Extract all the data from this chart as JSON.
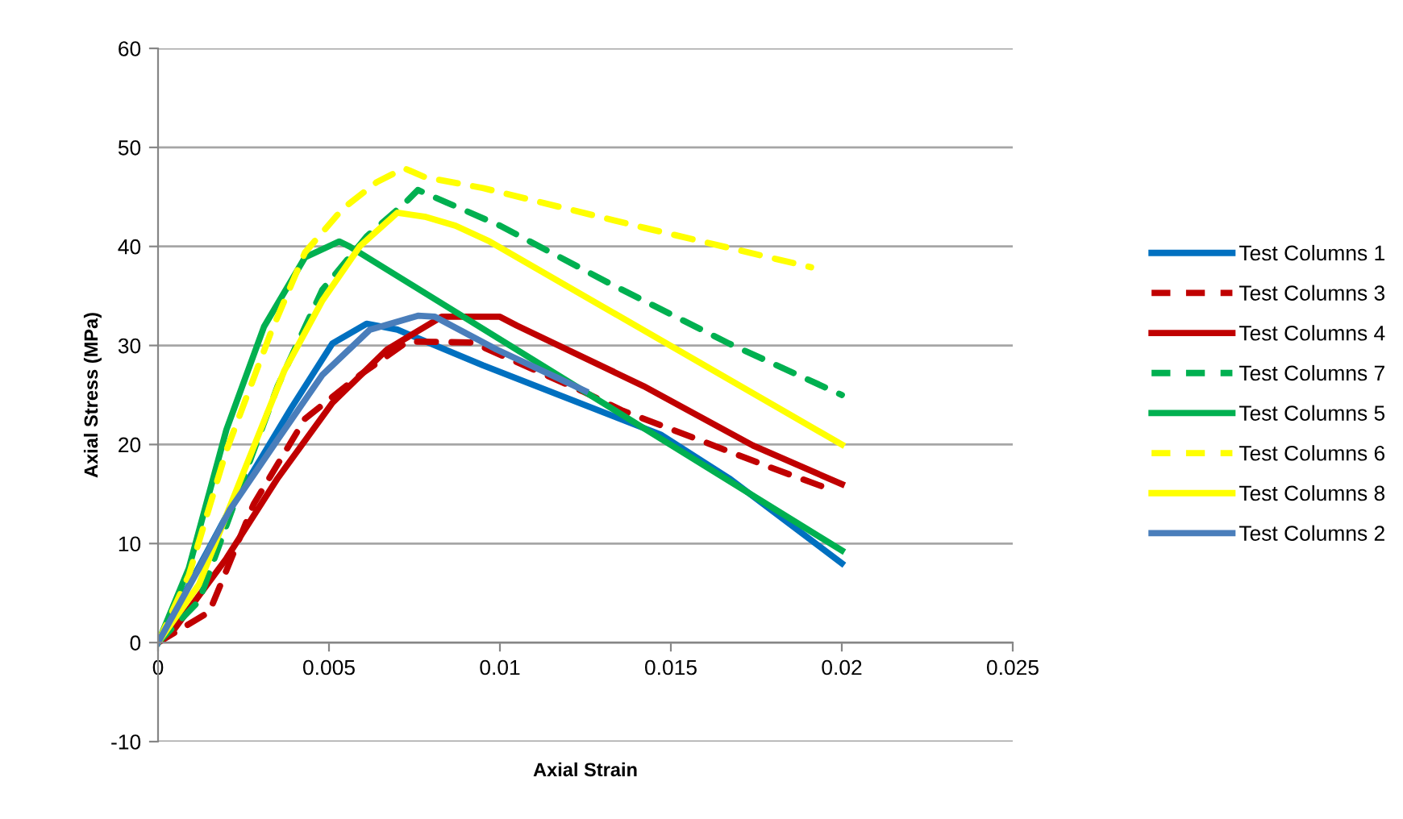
{
  "chart_data": {
    "type": "line",
    "xlabel": "Axial Strain",
    "ylabel": "Axial Stress (MPa)",
    "xlim": [
      0,
      0.025
    ],
    "xticks": [
      0,
      0.005,
      0.01,
      0.015,
      0.02,
      0.025
    ],
    "ylim": [
      -10,
      60
    ],
    "yticks": [
      -10,
      0,
      10,
      20,
      30,
      40,
      50,
      60
    ],
    "grid": "y",
    "legend": "right",
    "marker": "none",
    "series": [
      {
        "name": "Test Columns 1",
        "color": "#0070c0",
        "line_style": "solid",
        "x": [
          0,
          0.002,
          0.0039,
          0.0051,
          0.0061,
          0.007,
          0.0095,
          0.0147,
          0.0167,
          0.02
        ],
        "values": [
          0,
          12.8,
          23.7,
          30.2,
          32.2,
          31.6,
          28,
          21,
          16.6,
          8
        ]
      },
      {
        "name": "Test Columns 3",
        "color": "#c00000",
        "line_style": "dashed",
        "x": [
          0,
          0.0015,
          0.0028,
          0.0043,
          0.0059,
          0.0073,
          0.0092,
          0.0124,
          0.0136,
          0.0158,
          0.0179,
          0.0194
        ],
        "values": [
          0,
          3.1,
          14,
          22.6,
          27,
          30.4,
          30.3,
          25.4,
          23.4,
          20.5,
          17.7,
          15.8
        ]
      },
      {
        "name": "Test Columns 4",
        "color": "#c00000",
        "line_style": "solid",
        "x": [
          0,
          0.0004,
          0.002,
          0.0035,
          0.0051,
          0.0067,
          0.0083,
          0.01,
          0.0105,
          0.0142,
          0.0174,
          0.02
        ],
        "values": [
          0,
          1,
          8.5,
          16.6,
          24.2,
          29.6,
          32.9,
          32.9,
          32,
          25.9,
          19.9,
          16
        ]
      },
      {
        "name": "Test Columns 7",
        "color": "#00b050",
        "line_style": "dashed",
        "x": [
          0,
          0.0012,
          0.0025,
          0.0035,
          0.0048,
          0.0061,
          0.0072,
          0.0076,
          0.01,
          0.0133,
          0.0167,
          0.02
        ],
        "values": [
          0,
          4.2,
          16.6,
          25.9,
          35.6,
          41,
          44.3,
          45.7,
          42.1,
          36.1,
          30.2,
          25
        ]
      },
      {
        "name": "Test Columns 5",
        "color": "#00b050",
        "line_style": "solid",
        "x": [
          0,
          0.0009,
          0.002,
          0.0031,
          0.0043,
          0.0053,
          0.0056,
          0.02
        ],
        "values": [
          0,
          7.5,
          21.5,
          31.9,
          38.9,
          40.5,
          40,
          9.3
        ]
      },
      {
        "name": "Test Columns 6",
        "color": "#ffff00",
        "line_style": "dashed",
        "x": [
          0,
          0.0009,
          0.002,
          0.0033,
          0.0043,
          0.0054,
          0.0064,
          0.0072,
          0.0078,
          0.0095,
          0.0142,
          0.0191
        ],
        "values": [
          0,
          6.8,
          19.4,
          31.3,
          39.4,
          43.8,
          46.5,
          47.9,
          47,
          45.9,
          41.9,
          37.9
        ]
      },
      {
        "name": "Test Columns 8",
        "color": "#ffff00",
        "line_style": "solid",
        "x": [
          0,
          0.0012,
          0.0025,
          0.0037,
          0.0048,
          0.0059,
          0.007,
          0.0078,
          0.0087,
          0.0097,
          0.02
        ],
        "values": [
          0,
          5.9,
          17.2,
          27.5,
          34.5,
          40,
          43.4,
          43,
          42.1,
          40.5,
          20
        ]
      },
      {
        "name": "Test Columns 2",
        "color": "#4a7ebb",
        "line_style": "solid",
        "x": [
          0,
          0.0012,
          0.0021,
          0.0035,
          0.0048,
          0.0062,
          0.0076,
          0.0081,
          0.0099,
          0.0117,
          0.0125
        ],
        "values": [
          0,
          7.5,
          13.4,
          20.5,
          27,
          31.6,
          33,
          32.9,
          29.6,
          26.7,
          25.4
        ]
      }
    ]
  }
}
